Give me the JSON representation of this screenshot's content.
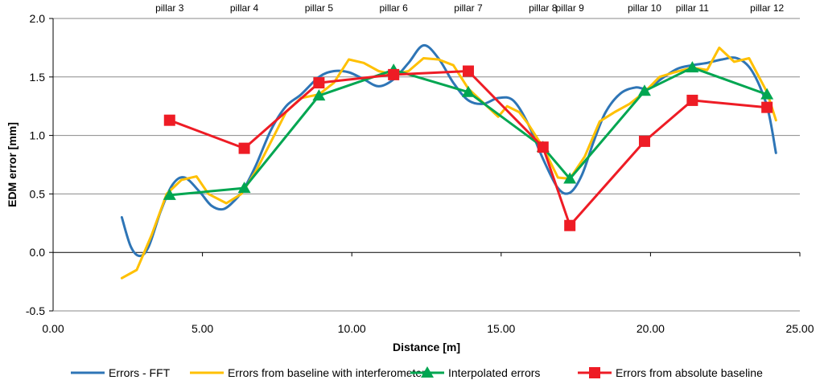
{
  "chart_data": {
    "type": "line",
    "xlabel": "Distance [m]",
    "ylabel": "EDM error [mm]",
    "xlim": [
      0,
      25
    ],
    "ylim": [
      -0.5,
      2.0
    ],
    "x_ticks": [
      "0.00",
      "5.00",
      "10.00",
      "15.00",
      "20.00",
      "25.00"
    ],
    "y_ticks": [
      "-0.5",
      "0.0",
      "0.5",
      "1.0",
      "1.5",
      "2.0"
    ],
    "x_tick_values": [
      0,
      5,
      10,
      15,
      20,
      25
    ],
    "y_tick_values": [
      -0.5,
      0,
      0.5,
      1.0,
      1.5,
      2.0
    ],
    "grid": "horizontal",
    "legend_position": "bottom",
    "top_annotations": [
      {
        "label": "pillar 3",
        "x": 3.9
      },
      {
        "label": "pillar 4",
        "x": 6.4
      },
      {
        "label": "pillar 5",
        "x": 8.9
      },
      {
        "label": "pillar 6",
        "x": 11.4
      },
      {
        "label": "pillar 7",
        "x": 13.9
      },
      {
        "label": "pillar 8",
        "x": 16.4
      },
      {
        "label": "pillar 9",
        "x": 17.3
      },
      {
        "label": "pillar 10",
        "x": 19.8
      },
      {
        "label": "pillar 11",
        "x": 21.4
      },
      {
        "label": "pillar 12",
        "x": 23.9
      }
    ],
    "series": [
      {
        "name": "Errors - FFT",
        "color": "#2E75B6",
        "marker": "none",
        "smooth": true,
        "x": [
          2.3,
          2.6,
          2.9,
          3.2,
          3.6,
          4.0,
          4.4,
          4.9,
          5.3,
          5.7,
          6.1,
          6.4,
          6.8,
          7.3,
          7.8,
          8.3,
          8.9,
          9.4,
          9.9,
          10.4,
          10.9,
          11.4,
          11.9,
          12.4,
          12.9,
          13.4,
          13.9,
          14.4,
          14.9,
          15.4,
          15.9,
          16.4,
          16.9,
          17.3,
          17.7,
          18.1,
          18.5,
          19.0,
          19.5,
          19.9,
          20.4,
          20.9,
          21.4,
          21.9,
          22.4,
          22.9,
          23.4,
          23.9,
          24.2
        ],
        "y": [
          0.3,
          0.05,
          -0.03,
          0.05,
          0.35,
          0.58,
          0.64,
          0.52,
          0.4,
          0.37,
          0.45,
          0.55,
          0.75,
          1.05,
          1.25,
          1.35,
          1.5,
          1.55,
          1.54,
          1.48,
          1.42,
          1.48,
          1.62,
          1.77,
          1.66,
          1.45,
          1.3,
          1.27,
          1.32,
          1.3,
          1.1,
          0.8,
          0.55,
          0.51,
          0.66,
          0.95,
          1.2,
          1.36,
          1.41,
          1.4,
          1.49,
          1.57,
          1.6,
          1.62,
          1.65,
          1.66,
          1.55,
          1.25,
          0.85
        ]
      },
      {
        "name": "Errors from baseline with interferometer",
        "color": "#FFC000",
        "marker": "none",
        "smooth": false,
        "x": [
          2.3,
          2.8,
          3.3,
          3.8,
          4.3,
          4.8,
          5.2,
          5.8,
          6.3,
          6.8,
          7.3,
          7.8,
          8.3,
          8.9,
          9.4,
          9.9,
          10.4,
          10.9,
          11.4,
          11.9,
          12.4,
          12.9,
          13.4,
          13.9,
          14.4,
          14.9,
          15.2,
          15.6,
          15.9,
          16.4,
          16.9,
          17.3,
          17.8,
          18.3,
          18.8,
          19.3,
          19.8,
          20.3,
          20.8,
          21.4,
          21.9,
          22.3,
          22.8,
          23.3,
          23.9,
          24.2
        ],
        "y": [
          -0.22,
          -0.15,
          0.15,
          0.5,
          0.62,
          0.65,
          0.5,
          0.42,
          0.5,
          0.7,
          0.95,
          1.2,
          1.32,
          1.35,
          1.45,
          1.65,
          1.62,
          1.55,
          1.52,
          1.55,
          1.66,
          1.65,
          1.6,
          1.4,
          1.28,
          1.16,
          1.25,
          1.2,
          1.1,
          0.9,
          0.64,
          0.63,
          0.82,
          1.12,
          1.2,
          1.27,
          1.37,
          1.5,
          1.54,
          1.58,
          1.56,
          1.75,
          1.63,
          1.66,
          1.37,
          1.13
        ]
      },
      {
        "name": "Interpolated errors",
        "color": "#00A651",
        "marker": "triangle",
        "smooth": false,
        "x": [
          3.9,
          6.4,
          8.9,
          11.4,
          13.9,
          16.4,
          17.3,
          19.8,
          21.4,
          23.9
        ],
        "y": [
          0.49,
          0.55,
          1.34,
          1.56,
          1.37,
          0.9,
          0.63,
          1.38,
          1.58,
          1.35
        ]
      },
      {
        "name": "Errors from absolute baseline",
        "color": "#EE1C25",
        "marker": "square",
        "smooth": false,
        "x": [
          3.9,
          6.4,
          8.9,
          11.4,
          13.9,
          16.4,
          17.3,
          19.8,
          21.4,
          23.9
        ],
        "y": [
          1.13,
          0.89,
          1.45,
          1.52,
          1.55,
          0.9,
          0.23,
          0.95,
          1.3,
          1.24
        ]
      }
    ]
  }
}
